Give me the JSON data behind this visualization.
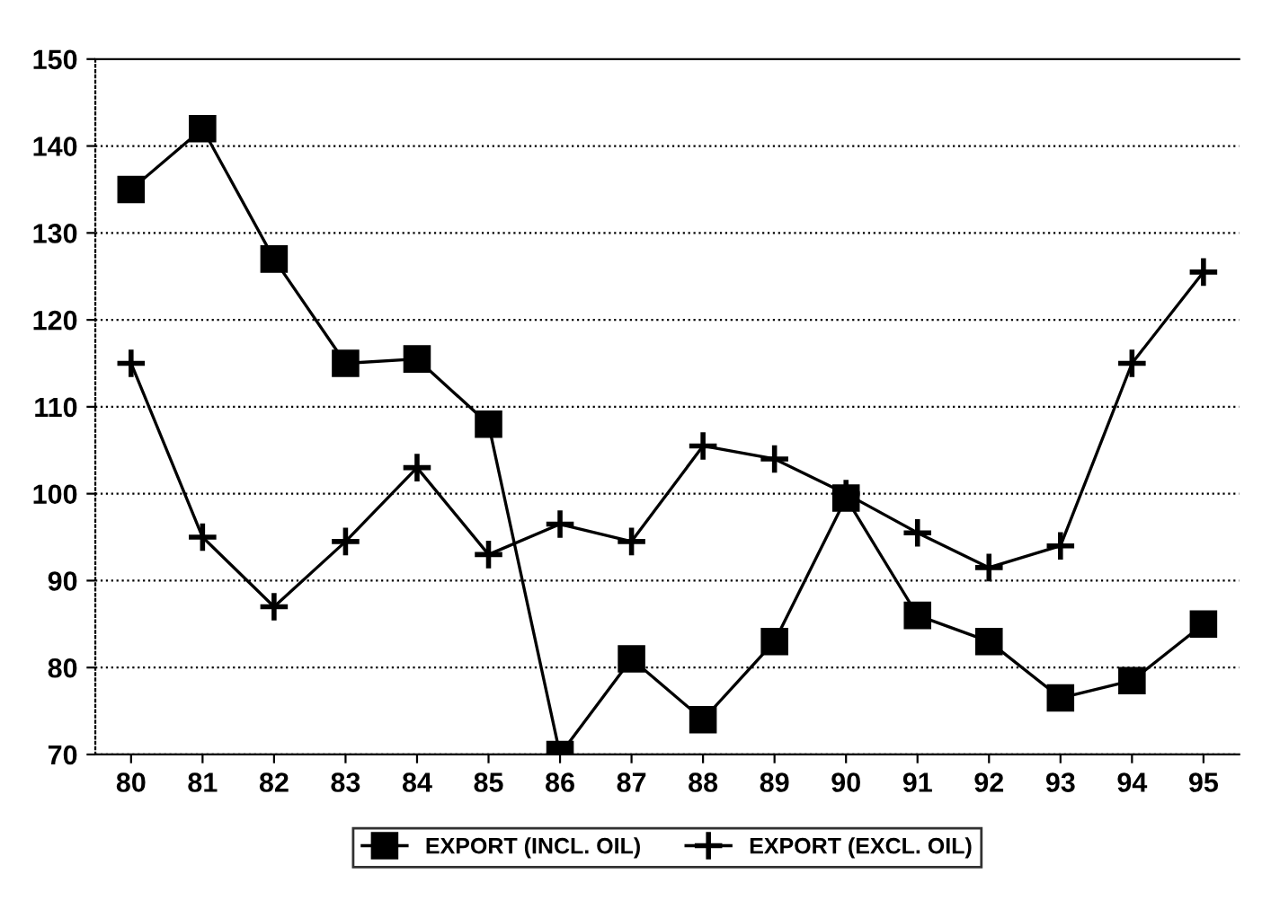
{
  "chart_data": {
    "type": "line",
    "categories": [
      "80",
      "81",
      "82",
      "83",
      "84",
      "85",
      "86",
      "87",
      "88",
      "89",
      "90",
      "91",
      "92",
      "93",
      "94",
      "95"
    ],
    "series": [
      {
        "name": "EXPORT (INCL. OIL)",
        "color": "#000000",
        "marker": "square",
        "values": [
          135,
          142,
          127,
          115,
          115.5,
          108,
          70,
          81,
          74,
          83,
          99.5,
          86,
          83,
          76.5,
          78.5,
          85
        ]
      },
      {
        "name": "EXPORT (EXCL. OIL)",
        "color": "#000000",
        "marker": "cross",
        "values": [
          115,
          95,
          87,
          94.5,
          103,
          93,
          96.5,
          94.5,
          105.5,
          104,
          100,
          95.5,
          91.5,
          94,
          115,
          125.5
        ]
      }
    ],
    "ylim": [
      70,
      150
    ],
    "yticks": [
      70,
      80,
      90,
      100,
      110,
      120,
      130,
      140,
      150
    ],
    "grid": "y",
    "legend": "bottom",
    "line_style": "solid"
  }
}
